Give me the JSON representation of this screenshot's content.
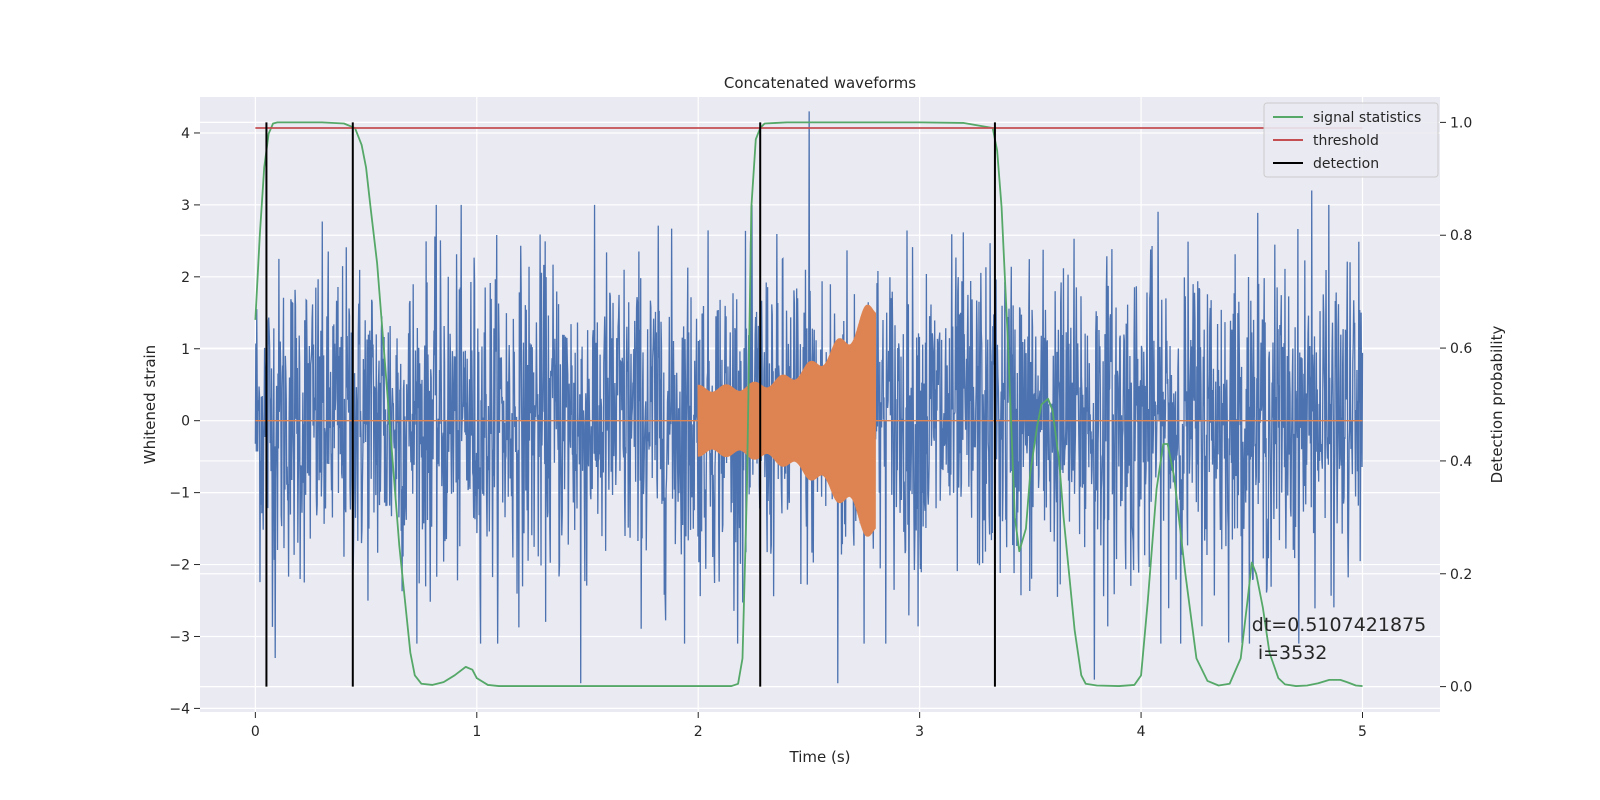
{
  "chart_data": {
    "type": "line",
    "title": "Concatenated waveforms",
    "xlabel": "Time (s)",
    "ylabel": "Whitened strain",
    "y2label": "Detection probability",
    "xlim": [
      -0.25,
      5.35
    ],
    "ylim": [
      -4.05,
      4.5
    ],
    "y2lim": [
      -0.045,
      1.045
    ],
    "xticks": [
      0,
      1,
      2,
      3,
      4,
      5
    ],
    "yticks": [
      -4,
      -3,
      -2,
      -1,
      0,
      1,
      2,
      3,
      4
    ],
    "y2ticks": [
      0.0,
      0.2,
      0.4,
      0.6,
      0.8,
      1.0
    ],
    "y2tick_labels": [
      "0.0",
      "0.2",
      "0.4",
      "0.6",
      "0.8",
      "1.0"
    ],
    "grid": true,
    "legend_position": "top-right",
    "noise_envelope": {
      "x_range": [
        0,
        5
      ],
      "typical_range": [
        -1.9,
        2.1
      ],
      "extremes": [
        [
          0.09,
          -3.3
        ],
        [
          1.47,
          -3.65
        ],
        [
          2.5,
          4.3
        ],
        [
          2.63,
          -3.65
        ],
        [
          3.79,
          -3.6
        ],
        [
          4.77,
          3.2
        ]
      ]
    },
    "chirp": {
      "x_range": [
        2.0,
        2.8
      ],
      "amplitude_start": 0.5,
      "amplitude_end": 1.8
    },
    "series": [
      {
        "name": "signal statistics",
        "axis": "right",
        "color": "#55a868",
        "x": [
          0.0,
          0.02,
          0.04,
          0.06,
          0.08,
          0.1,
          0.15,
          0.2,
          0.3,
          0.4,
          0.45,
          0.48,
          0.5,
          0.52,
          0.55,
          0.58,
          0.6,
          0.65,
          0.7,
          0.72,
          0.75,
          0.8,
          0.85,
          0.9,
          0.95,
          0.98,
          1.0,
          1.05,
          1.1,
          1.3,
          1.5,
          1.8,
          2.0,
          2.15,
          2.18,
          2.2,
          2.22,
          2.24,
          2.26,
          2.28,
          2.3,
          2.35,
          2.4,
          2.6,
          2.8,
          3.0,
          3.2,
          3.33,
          3.35,
          3.37,
          3.4,
          3.43,
          3.45,
          3.48,
          3.5,
          3.53,
          3.55,
          3.58,
          3.6,
          3.63,
          3.65,
          3.7,
          3.73,
          3.75,
          3.8,
          3.9,
          3.97,
          4.0,
          4.03,
          4.07,
          4.1,
          4.12,
          4.15,
          4.2,
          4.25,
          4.3,
          4.35,
          4.4,
          4.45,
          4.48,
          4.5,
          4.52,
          4.55,
          4.58,
          4.62,
          4.65,
          4.7,
          4.75,
          4.8,
          4.85,
          4.9,
          4.93,
          4.97,
          5.0
        ],
        "values": [
          0.65,
          0.8,
          0.92,
          0.98,
          0.998,
          1.0,
          1.0,
          1.0,
          1.0,
          0.998,
          0.99,
          0.96,
          0.92,
          0.85,
          0.75,
          0.6,
          0.5,
          0.25,
          0.06,
          0.02,
          0.005,
          0.003,
          0.008,
          0.02,
          0.035,
          0.03,
          0.015,
          0.003,
          0.001,
          0.001,
          0.001,
          0.001,
          0.001,
          0.001,
          0.005,
          0.05,
          0.35,
          0.85,
          0.97,
          0.99,
          0.998,
          0.999,
          1.0,
          1.0,
          1.0,
          1.0,
          0.999,
          0.99,
          0.95,
          0.85,
          0.6,
          0.3,
          0.24,
          0.28,
          0.38,
          0.46,
          0.5,
          0.51,
          0.49,
          0.4,
          0.3,
          0.1,
          0.02,
          0.005,
          0.002,
          0.001,
          0.003,
          0.02,
          0.15,
          0.35,
          0.43,
          0.43,
          0.37,
          0.2,
          0.05,
          0.01,
          0.002,
          0.005,
          0.05,
          0.15,
          0.22,
          0.2,
          0.14,
          0.06,
          0.015,
          0.004,
          0.001,
          0.002,
          0.006,
          0.012,
          0.012,
          0.008,
          0.002,
          0.001
        ]
      },
      {
        "name": "threshold",
        "axis": "right",
        "color": "#c44e52",
        "x": [
          0,
          5
        ],
        "values": [
          0.99,
          0.99
        ]
      },
      {
        "name": "detection",
        "axis": "right",
        "color": "#000000",
        "type": "vlines",
        "x": [
          0.05,
          0.44,
          2.28,
          3.34
        ],
        "ymin": 0.0,
        "ymax": 1.0
      }
    ],
    "annotation": {
      "x": 4.5,
      "y": 0.12,
      "lines": [
        "dt=0.5107421875",
        " i=3532"
      ]
    }
  },
  "colors": {
    "plot_background": "#eaeaf2",
    "grid": "#ffffff",
    "strain": "#4c72b0",
    "chirp": "#dd8452"
  }
}
